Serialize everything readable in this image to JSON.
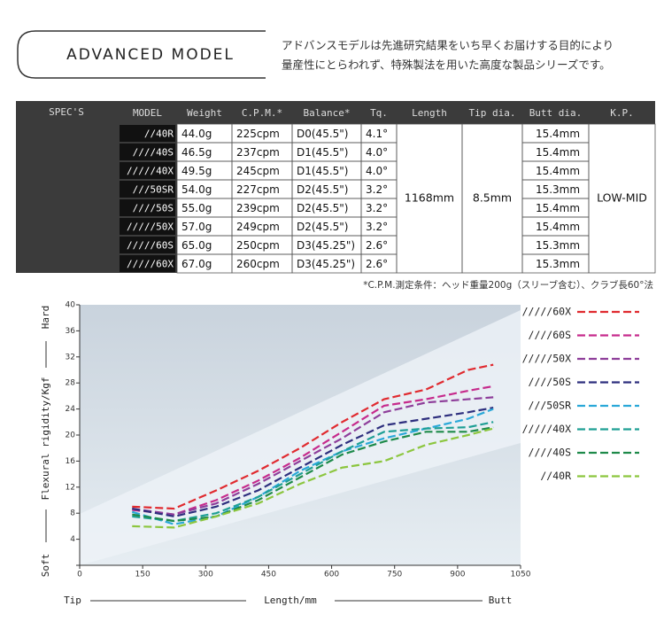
{
  "header": {
    "title": "ADVANCED MODEL",
    "description": [
      "アドバンスモデルは先進研究結果をいち早くお届けする目的により",
      "量産性にとらわれず、特殊製法を用いた高度な製品シリーズです。"
    ]
  },
  "table": {
    "label": "SPEC'S",
    "columns": [
      "MODEL",
      "Weight",
      "C.P.M.*",
      "Balance*",
      "Tq.",
      "Length",
      "Tip dia.",
      "Butt dia.",
      "K.P."
    ],
    "rows": [
      [
        "//40R",
        "44.0g",
        "225cpm",
        "D0(45.5\")",
        "4.1°",
        "15.4mm"
      ],
      [
        "////40S",
        "46.5g",
        "237cpm",
        "D1(45.5\")",
        "4.0°",
        "15.4mm"
      ],
      [
        "/////40X",
        "49.5g",
        "245cpm",
        "D1(45.5\")",
        "4.0°",
        "15.4mm"
      ],
      [
        "///50SR",
        "54.0g",
        "227cpm",
        "D2(45.5\")",
        "3.2°",
        "15.3mm"
      ],
      [
        "////50S",
        "55.0g",
        "239cpm",
        "D2(45.5\")",
        "3.2°",
        "15.4mm"
      ],
      [
        "/////50X",
        "57.0g",
        "249cpm",
        "D2(45.5\")",
        "3.2°",
        "15.4mm"
      ],
      [
        "/////60S",
        "65.0g",
        "250cpm",
        "D3(45.25\")",
        "2.6°",
        "15.3mm"
      ],
      [
        "/////60X",
        "67.0g",
        "260cpm",
        "D3(45.25\")",
        "2.6°",
        "15.3mm"
      ]
    ],
    "length": "1168mm",
    "tip_dia": "8.5mm",
    "kp": "LOW-MID",
    "note": "*C.P.M.測定条件：ヘッド重量200g（スリーブ含む）、クラブ長60°法"
  },
  "chart_data": {
    "type": "line",
    "y_label": "Flexural rigidity/Kgf",
    "y_top_label": "Hard",
    "y_bottom_label": "Soft",
    "x_label": "Length/mm",
    "x_left_label": "Tip",
    "x_right_label": "Butt",
    "xlim": [
      0,
      1050
    ],
    "xticks": [
      0,
      150,
      300,
      450,
      600,
      750,
      900,
      1050
    ],
    "ylim": [
      0,
      40
    ],
    "yticks": [
      0,
      4,
      8,
      12,
      16,
      20,
      24,
      28,
      32,
      36,
      40
    ],
    "x": [
      125,
      225,
      325,
      425,
      525,
      625,
      725,
      825,
      925,
      985
    ],
    "series": [
      {
        "name": "/////60X",
        "color": "#e02a2f",
        "values": [
          9,
          8.7,
          11.5,
          14.5,
          18,
          22,
          25.5,
          27,
          30,
          30.8
        ]
      },
      {
        "name": "////60S",
        "color": "#c62b8c",
        "values": [
          8.5,
          7.8,
          10,
          13,
          16.5,
          20.5,
          24.5,
          25.5,
          26.8,
          27.5
        ]
      },
      {
        "name": "/////50X",
        "color": "#8e3e9a",
        "values": [
          8.7,
          7.8,
          9.5,
          12.5,
          16,
          19.5,
          23.5,
          25,
          25.5,
          25.8
        ]
      },
      {
        "name": "////50S",
        "color": "#2e2f7e",
        "values": [
          8.7,
          7.5,
          9,
          11.5,
          15,
          18.5,
          21.5,
          22.5,
          23.5,
          24.2
        ]
      },
      {
        "name": "///50SR",
        "color": "#2aa8d8",
        "values": [
          8.2,
          6.3,
          7.5,
          10.5,
          14.5,
          17.5,
          19.5,
          21,
          22.5,
          24
        ]
      },
      {
        "name": "/////40X",
        "color": "#1f9f95",
        "values": [
          7.5,
          6.8,
          8,
          10.5,
          14,
          17.5,
          20.5,
          21,
          21.2,
          22
        ]
      },
      {
        "name": "////40S",
        "color": "#1e8a4a",
        "values": [
          7.8,
          6.8,
          7.5,
          10,
          13.5,
          17,
          19,
          20.5,
          20.5,
          21.2
        ]
      },
      {
        "name": "//40R",
        "color": "#8cc63f",
        "values": [
          6,
          5.8,
          7.5,
          9.5,
          12.5,
          15,
          16,
          18.5,
          20,
          21
        ]
      }
    ]
  }
}
